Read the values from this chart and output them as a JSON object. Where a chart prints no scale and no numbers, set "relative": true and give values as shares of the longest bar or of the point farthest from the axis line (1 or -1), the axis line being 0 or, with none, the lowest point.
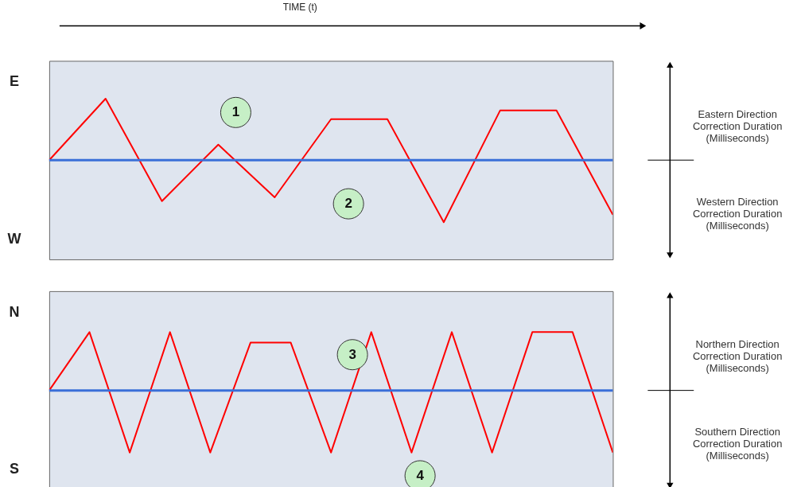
{
  "chart_data": [
    {
      "type": "line",
      "relative": true,
      "xlabel": "TIME (t)",
      "tick_labels": false,
      "categories": [
        null,
        null,
        null,
        null,
        null,
        null,
        null,
        null,
        null,
        null,
        null
      ],
      "series": [
        {
          "color": "#ff0000",
          "values": [
            0,
            0.99,
            -0.66,
            0.25,
            -0.6,
            0.66,
            0.66,
            -1,
            0.8,
            0.8,
            -0.88
          ]
        }
      ],
      "ref_lines": [
        {
          "axis": "y",
          "value": 0,
          "color": "#3a6fd8"
        }
      ],
      "annotations": [
        "E",
        "W",
        "Eastern Direction\nCorrection Duration\n(Milliseconds)",
        "Western Direction\nCorrection Duration\n(Milliseconds)",
        "1",
        "2"
      ]
    },
    {
      "type": "line",
      "relative": true,
      "tick_labels": false,
      "categories": [
        null,
        null,
        null,
        null,
        null,
        null,
        null,
        null,
        null,
        null,
        null,
        null,
        null,
        null,
        null
      ],
      "series": [
        {
          "color": "#ff0000",
          "values": [
            0,
            0.94,
            -1,
            0.94,
            -1,
            0.77,
            0.77,
            -1,
            0.94,
            -1,
            0.94,
            -1,
            0.94,
            0.94,
            -1
          ]
        }
      ],
      "ref_lines": [
        {
          "axis": "y",
          "value": 0,
          "color": "#3a6fd8"
        }
      ],
      "annotations": [
        "N",
        "S",
        "Northern  Direction\nCorrection Duration\n(Milliseconds)",
        "Southern Direction\nCorrection Duration\n(Milliseconds)",
        "3",
        "4"
      ]
    }
  ]
}
